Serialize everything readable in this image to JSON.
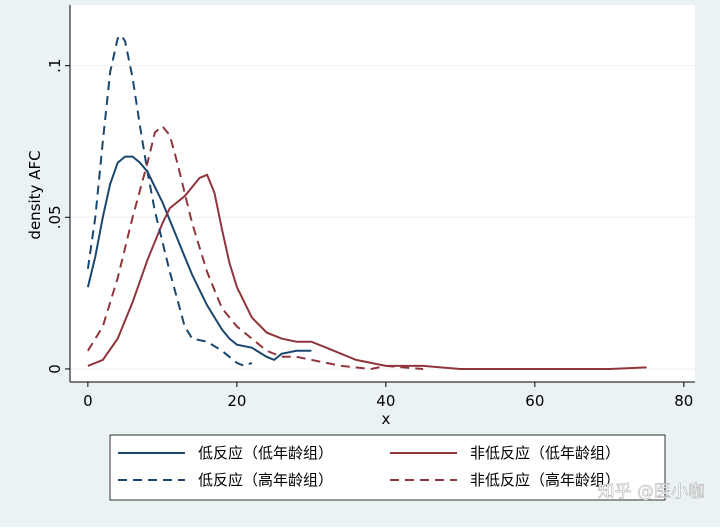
{
  "chart_data": {
    "type": "line",
    "xlabel": "x",
    "ylabel": "density AFC",
    "xlim": [
      -2.4,
      81.5
    ],
    "xticks": [
      0,
      20,
      40,
      60,
      80
    ],
    "ylim": [
      -0.0043,
      0.12
    ],
    "yticks": [
      0,
      {
        "value": 0.05,
        "label": ".05"
      },
      {
        "value": 0.1,
        "label": ".1"
      }
    ],
    "grid": true,
    "legend": "bottom",
    "series": [
      {
        "name": "低反应（低年龄组）",
        "color": "#1a476f",
        "dashed": false,
        "x": [
          0,
          1,
          2,
          3,
          4,
          5,
          6,
          7,
          8,
          9,
          10,
          11,
          12,
          13,
          14,
          15,
          16,
          17,
          18,
          19,
          20,
          22,
          24,
          25,
          26,
          28,
          30
        ],
        "values": [
          0.027,
          0.037,
          0.05,
          0.061,
          0.068,
          0.07,
          0.07,
          0.068,
          0.065,
          0.06,
          0.055,
          0.049,
          0.043,
          0.037,
          0.031,
          0.026,
          0.021,
          0.017,
          0.013,
          0.01,
          0.008,
          0.007,
          0.004,
          0.003,
          0.005,
          0.006,
          0.006
        ]
      },
      {
        "name": "非低反应（低年龄组）",
        "color": "#90353b",
        "dashed": false,
        "x": [
          0,
          2,
          4,
          6,
          8,
          10,
          11,
          12,
          13,
          14,
          15,
          16,
          17,
          18,
          19,
          20,
          22,
          24,
          26,
          28,
          30,
          32,
          34,
          36,
          38,
          40,
          45,
          50,
          60,
          70,
          75
        ],
        "values": [
          0.001,
          0.003,
          0.01,
          0.022,
          0.036,
          0.048,
          0.053,
          0.055,
          0.057,
          0.06,
          0.063,
          0.064,
          0.058,
          0.046,
          0.035,
          0.027,
          0.017,
          0.012,
          0.01,
          0.009,
          0.009,
          0.007,
          0.005,
          0.003,
          0.002,
          0.001,
          0.001,
          0,
          0,
          0,
          0.0005
        ]
      },
      {
        "name": "低反应（高年龄组）",
        "color": "#1a476f",
        "dashed": true,
        "x": [
          0,
          1,
          2,
          3,
          4,
          4.5,
          5,
          6,
          7,
          8,
          9,
          10,
          11,
          12,
          13,
          14,
          16,
          18,
          19,
          20,
          21,
          22
        ],
        "values": [
          0.033,
          0.05,
          0.075,
          0.098,
          0.109,
          0.11,
          0.108,
          0.096,
          0.08,
          0.065,
          0.052,
          0.042,
          0.032,
          0.023,
          0.014,
          0.01,
          0.009,
          0.006,
          0.004,
          0.002,
          0.001,
          0.002
        ]
      },
      {
        "name": "非低反应（高年龄组）",
        "color": "#90353b",
        "dashed": true,
        "x": [
          0,
          2,
          4,
          6,
          8,
          9,
          10,
          11,
          12,
          13,
          14,
          15,
          16,
          18,
          20,
          22,
          24,
          26,
          28,
          30,
          32,
          34,
          38,
          40,
          45
        ],
        "values": [
          0.006,
          0.014,
          0.03,
          0.05,
          0.068,
          0.078,
          0.08,
          0.077,
          0.068,
          0.058,
          0.048,
          0.04,
          0.032,
          0.02,
          0.014,
          0.01,
          0.006,
          0.004,
          0.004,
          0.003,
          0.002,
          0.001,
          0,
          0.001,
          0
        ]
      }
    ]
  },
  "watermark": "知乎 @医小咖"
}
